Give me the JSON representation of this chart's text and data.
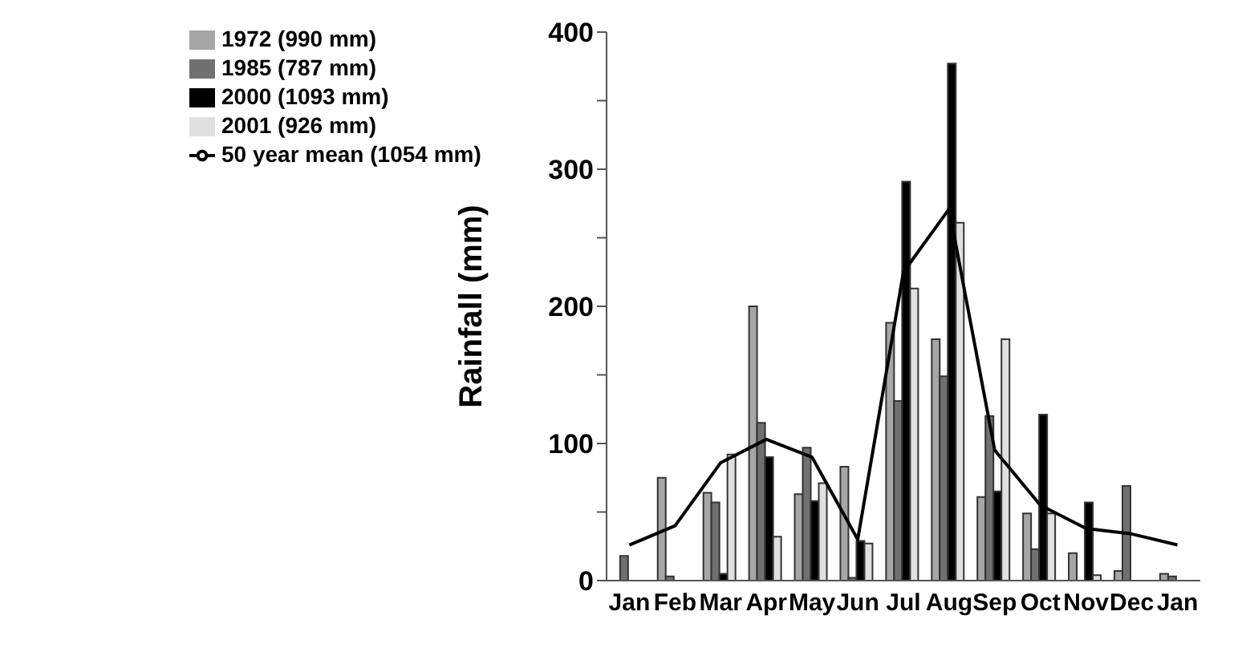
{
  "chart_data": {
    "type": "bar",
    "ylabel": "Rainfall (mm)",
    "categories": [
      "Jan",
      "Feb",
      "Mar",
      "Apr",
      "May",
      "Jun",
      "Jul",
      "Aug",
      "Sep",
      "Oct",
      "Nov",
      "Dec",
      "Jan"
    ],
    "series": [
      {
        "name": "1972 (990 mm)",
        "color": "#a6a6a6",
        "values": [
          0,
          75,
          64,
          200,
          63,
          83,
          188,
          176,
          61,
          49,
          20,
          7,
          5
        ]
      },
      {
        "name": "1985 (787 mm)",
        "color": "#707070",
        "values": [
          18,
          3,
          57,
          115,
          97,
          2,
          131,
          149,
          120,
          23,
          0,
          69,
          3
        ]
      },
      {
        "name": "2000 (1093 mm)",
        "color": "#000000",
        "values": [
          0,
          0,
          5,
          90,
          58,
          29,
          291,
          377,
          65,
          121,
          57,
          0,
          0
        ]
      },
      {
        "name": "2001 (926 mm)",
        "color": "#e0e0e0",
        "values": [
          0,
          0,
          92,
          32,
          71,
          27,
          213,
          261,
          176,
          49,
          4,
          0,
          0
        ]
      },
      {
        "name": "50 year mean (1054 mm)",
        "type": "line",
        "color": "#000000",
        "values": [
          26,
          40,
          86,
          103,
          90,
          30,
          225,
          271,
          95,
          55,
          38,
          34,
          26
        ]
      }
    ],
    "ylim": [
      0,
      400
    ],
    "yticks": [
      0,
      {
        "value": 50,
        "label": null
      },
      100,
      {
        "value": 150,
        "label": null
      },
      200,
      {
        "value": 250,
        "label": null
      },
      300,
      {
        "value": 350,
        "label": null
      },
      400
    ],
    "legend": "top left",
    "marker": "none",
    "grid": false
  }
}
